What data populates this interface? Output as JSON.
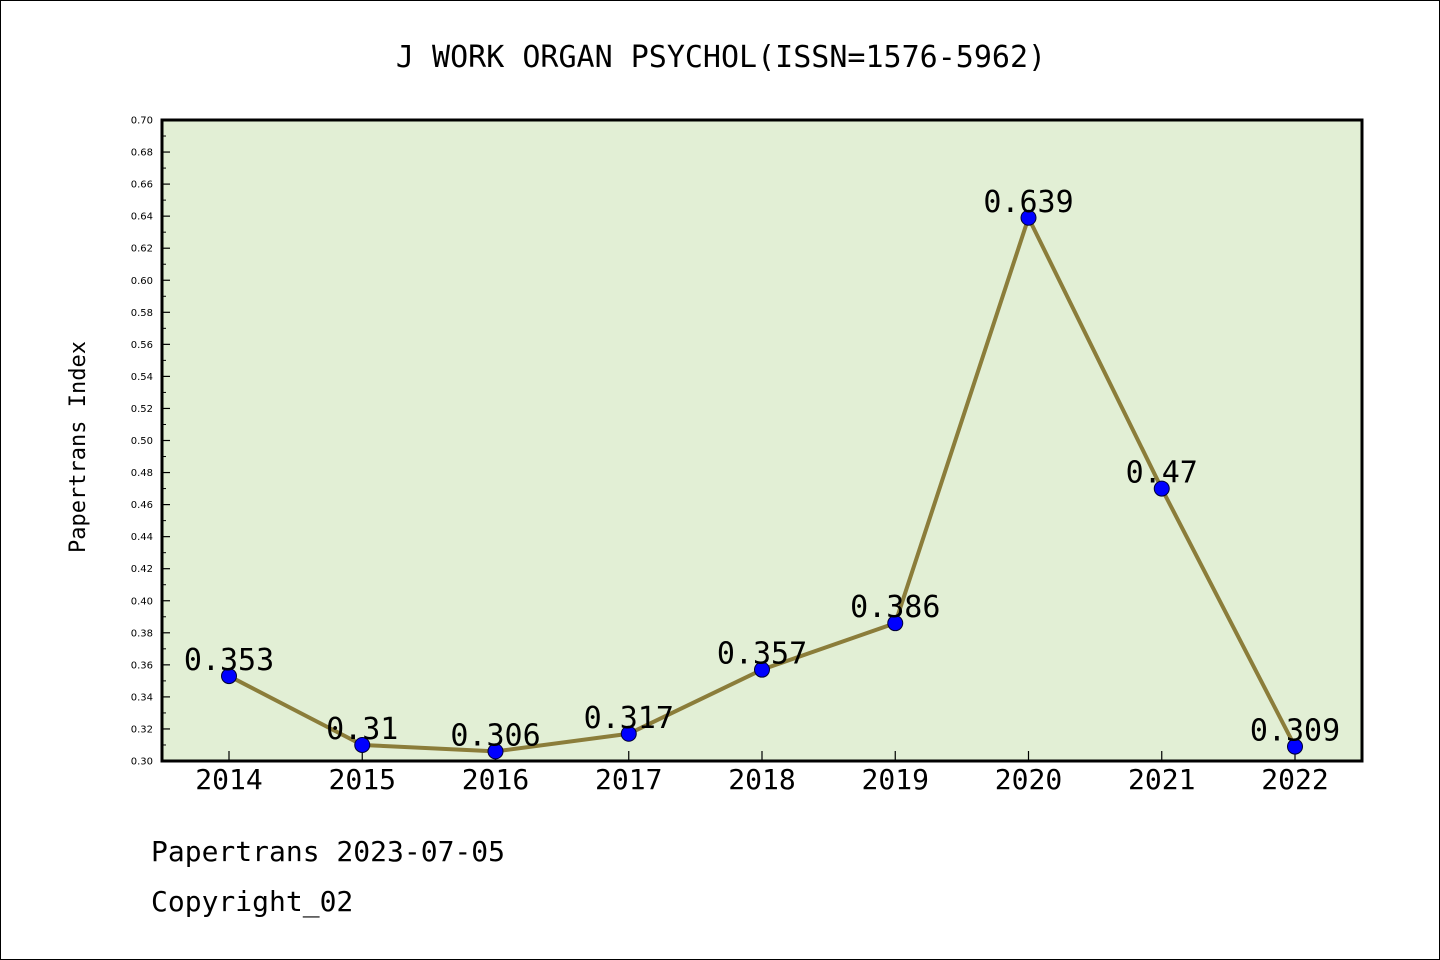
{
  "chart_data": {
    "type": "line",
    "title": "J WORK ORGAN PSYCHOL(ISSN=1576-5962)",
    "xlabel": "",
    "ylabel": "Papertrans Index",
    "categories": [
      "2014",
      "2015",
      "2016",
      "2017",
      "2018",
      "2019",
      "2020",
      "2021",
      "2022"
    ],
    "series": [
      {
        "values": [
          0.353,
          0.31,
          0.306,
          0.317,
          0.357,
          0.386,
          0.639,
          0.47,
          0.309
        ],
        "labels": [
          "0.353",
          "0.31",
          "0.306",
          "0.317",
          "0.357",
          "0.386",
          "0.639",
          "0.47",
          "0.309"
        ],
        "line_color": "#8b7d3a",
        "marker_color": "#0000ff"
      }
    ],
    "ylim": [
      0.3,
      0.7
    ],
    "y_ticks": [
      "0.30",
      "0.32",
      "0.34",
      "0.36",
      "0.38",
      "0.40",
      "0.42",
      "0.44",
      "0.46",
      "0.48",
      "0.50",
      "0.52",
      "0.54",
      "0.56",
      "0.58",
      "0.60",
      "0.62",
      "0.64",
      "0.66",
      "0.68",
      "0.70"
    ],
    "grid": false,
    "legend": "none",
    "plot_background": "#e2efd5"
  },
  "footer": {
    "source_line": "Papertrans 2023-07-05",
    "copyright_line": "Copyright_02"
  }
}
